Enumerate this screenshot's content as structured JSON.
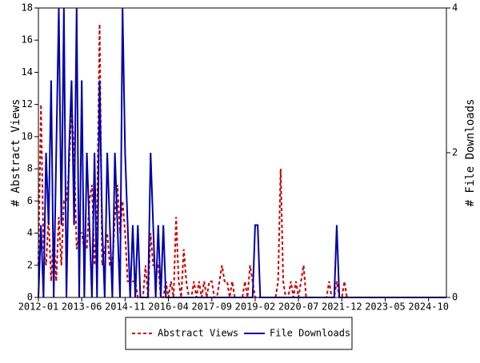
{
  "chart_data": {
    "type": "line",
    "y_label": "# Abstract Views",
    "y2_label": "# File Downloads",
    "x": [
      "2012-01",
      "2012-02",
      "2012-03",
      "2012-04",
      "2012-05",
      "2012-06",
      "2012-07",
      "2012-08",
      "2012-09",
      "2012-10",
      "2012-11",
      "2012-12",
      "2013-01",
      "2013-02",
      "2013-03",
      "2013-04",
      "2013-05",
      "2013-06",
      "2013-07",
      "2013-08",
      "2013-09",
      "2013-10",
      "2013-11",
      "2013-12",
      "2014-01",
      "2014-02",
      "2014-03",
      "2014-04",
      "2014-05",
      "2014-06",
      "2014-07",
      "2014-08",
      "2014-09",
      "2014-10",
      "2014-11",
      "2014-12",
      "2015-01",
      "2015-02",
      "2015-03",
      "2015-04",
      "2015-05",
      "2015-06",
      "2015-07",
      "2015-08",
      "2015-09",
      "2015-10",
      "2015-11",
      "2015-12",
      "2016-01",
      "2016-02",
      "2016-03",
      "2016-04",
      "2016-05",
      "2016-06",
      "2016-07",
      "2016-08",
      "2016-09",
      "2016-10",
      "2016-11",
      "2016-12",
      "2017-01",
      "2017-02",
      "2017-03",
      "2017-04",
      "2017-05",
      "2017-06",
      "2017-07",
      "2017-08",
      "2017-09",
      "2017-10",
      "2017-11",
      "2017-12",
      "2018-01",
      "2018-02",
      "2018-03",
      "2018-04",
      "2018-05",
      "2018-06",
      "2018-07",
      "2018-08",
      "2018-09",
      "2018-10",
      "2018-11",
      "2018-12",
      "2019-01",
      "2019-02",
      "2019-03",
      "2019-04",
      "2019-05",
      "2019-06",
      "2019-07",
      "2019-08",
      "2019-09",
      "2019-10",
      "2019-11",
      "2019-12",
      "2020-01",
      "2020-02",
      "2020-03",
      "2020-04",
      "2020-05",
      "2020-06",
      "2020-07",
      "2020-08",
      "2020-09",
      "2020-10",
      "2020-11",
      "2020-12",
      "2021-01",
      "2021-02",
      "2021-03",
      "2021-04",
      "2021-05",
      "2021-06",
      "2021-07",
      "2021-08",
      "2021-09",
      "2021-10",
      "2021-11",
      "2021-12",
      "2022-01",
      "2022-02",
      "2022-03",
      "2022-04",
      "2022-05",
      "2022-06",
      "2022-07",
      "2022-08",
      "2022-09",
      "2022-10",
      "2022-11",
      "2022-12",
      "2023-01",
      "2023-02",
      "2023-03",
      "2023-04",
      "2023-05",
      "2023-06",
      "2023-07",
      "2023-08",
      "2023-09",
      "2023-10",
      "2023-11",
      "2023-12",
      "2024-01",
      "2024-02",
      "2024-03",
      "2024-04",
      "2024-05",
      "2024-06",
      "2024-07",
      "2024-08",
      "2024-09",
      "2024-10",
      "2024-11",
      "2024-12",
      "2025-01",
      "2025-02",
      "2025-03",
      "2025-04",
      "2025-05"
    ],
    "series": [
      {
        "name": "Abstract Views",
        "color": "#cc0000",
        "dash": true,
        "values": [
          2,
          12,
          3,
          2,
          5,
          1,
          4,
          1,
          5,
          2,
          6,
          6,
          8,
          12,
          9,
          3,
          4,
          4,
          3,
          3,
          6,
          7,
          2,
          5,
          17,
          2,
          3,
          4,
          2,
          2,
          5,
          7,
          4,
          6,
          4,
          1,
          1,
          1,
          1,
          0,
          0,
          0,
          2,
          0,
          4,
          2,
          2,
          2,
          0,
          0,
          1,
          0,
          1,
          0,
          5,
          1,
          0,
          3,
          1,
          0,
          0,
          1,
          0,
          1,
          0,
          1,
          0,
          1,
          1,
          0,
          0,
          1,
          2,
          1,
          1,
          0,
          1,
          0,
          0,
          0,
          0,
          1,
          0,
          2,
          1,
          0,
          0,
          0,
          0,
          0,
          0,
          0,
          0,
          0,
          1,
          8,
          1,
          0,
          0,
          1,
          0,
          1,
          0,
          1,
          2,
          0,
          0,
          0,
          0,
          0,
          0,
          0,
          0,
          0,
          1,
          0,
          0,
          1,
          0,
          0,
          1,
          0,
          0,
          0,
          0,
          0,
          0,
          0,
          0,
          0,
          0,
          0,
          0,
          0,
          0,
          0,
          0,
          0,
          0,
          0,
          0,
          0,
          0,
          0,
          0,
          0,
          0,
          0,
          0,
          0,
          0,
          0,
          0,
          0,
          0,
          0,
          0,
          0,
          0,
          0,
          0
        ]
      },
      {
        "name": "File Downloads",
        "color": "#0000aa",
        "dash": false,
        "axis": "y2",
        "values": [
          0,
          1,
          0,
          2,
          1,
          3,
          0,
          2,
          4,
          1,
          4,
          0,
          2,
          3,
          1,
          4,
          0,
          3,
          0,
          2,
          1,
          0,
          2,
          0,
          3,
          1,
          0,
          2,
          1,
          0,
          2,
          1,
          0,
          4,
          2,
          1,
          0,
          1,
          0,
          1,
          0,
          0,
          0,
          0,
          2,
          1,
          0,
          1,
          0,
          1,
          0,
          0,
          0,
          0,
          0,
          0,
          0,
          0,
          0,
          0,
          0,
          0,
          0,
          0,
          0,
          0,
          0,
          0,
          0,
          0,
          0,
          0,
          0,
          0,
          0,
          0,
          0,
          0,
          0,
          0,
          0,
          0,
          0,
          0,
          0,
          1,
          1,
          0,
          0,
          0,
          0,
          0,
          0,
          0,
          0,
          0,
          0,
          0,
          0,
          0,
          0,
          0,
          0,
          0,
          0,
          0,
          0,
          0,
          0,
          0,
          0,
          0,
          0,
          0,
          0,
          0,
          0,
          1,
          0,
          0,
          0,
          0,
          0,
          0,
          0,
          0,
          0,
          0,
          0,
          0,
          0,
          0,
          0,
          0,
          0,
          0,
          0,
          0,
          0,
          0,
          0,
          0,
          0,
          0,
          0,
          0,
          0,
          0,
          0,
          0,
          0,
          0,
          0,
          0,
          0,
          0,
          0,
          0,
          0,
          0,
          0
        ]
      }
    ],
    "xlim": [
      "2012-01",
      "2025-05"
    ],
    "xticks": [
      "2012-01",
      "2013-06",
      "2014-11",
      "2016-04",
      "2017-09",
      "2019-02",
      "2020-07",
      "2021-12",
      "2023-05",
      "2024-10"
    ],
    "ylim": [
      0,
      18
    ],
    "yticks": [
      0,
      2,
      4,
      6,
      8,
      10,
      12,
      14,
      16,
      18
    ],
    "y2lim": [
      0,
      4
    ],
    "y2ticks": [
      0,
      2,
      4
    ],
    "legend": "bottom"
  }
}
